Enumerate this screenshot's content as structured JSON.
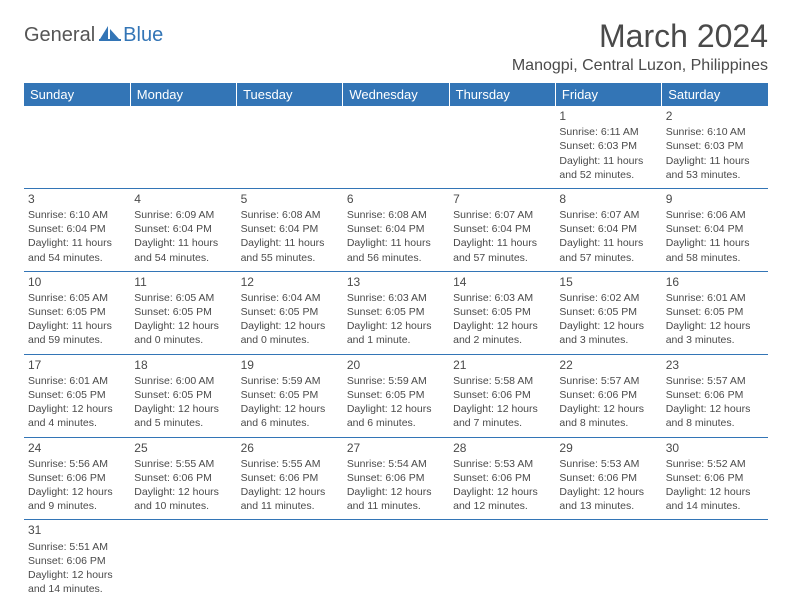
{
  "logo": {
    "part1": "General",
    "part2": "Blue"
  },
  "title": "March 2024",
  "location": "Manogpi, Central Luzon, Philippines",
  "colors": {
    "header_bg": "#3375b6",
    "header_fg": "#ffffff",
    "text": "#4a4a4a",
    "row_divider": "#3375b6",
    "page_bg": "#ffffff"
  },
  "day_headers": [
    "Sunday",
    "Monday",
    "Tuesday",
    "Wednesday",
    "Thursday",
    "Friday",
    "Saturday"
  ],
  "weeks": [
    [
      null,
      null,
      null,
      null,
      null,
      {
        "n": "1",
        "sr": "Sunrise: 6:11 AM",
        "ss": "Sunset: 6:03 PM",
        "d1": "Daylight: 11 hours",
        "d2": "and 52 minutes."
      },
      {
        "n": "2",
        "sr": "Sunrise: 6:10 AM",
        "ss": "Sunset: 6:03 PM",
        "d1": "Daylight: 11 hours",
        "d2": "and 53 minutes."
      }
    ],
    [
      {
        "n": "3",
        "sr": "Sunrise: 6:10 AM",
        "ss": "Sunset: 6:04 PM",
        "d1": "Daylight: 11 hours",
        "d2": "and 54 minutes."
      },
      {
        "n": "4",
        "sr": "Sunrise: 6:09 AM",
        "ss": "Sunset: 6:04 PM",
        "d1": "Daylight: 11 hours",
        "d2": "and 54 minutes."
      },
      {
        "n": "5",
        "sr": "Sunrise: 6:08 AM",
        "ss": "Sunset: 6:04 PM",
        "d1": "Daylight: 11 hours",
        "d2": "and 55 minutes."
      },
      {
        "n": "6",
        "sr": "Sunrise: 6:08 AM",
        "ss": "Sunset: 6:04 PM",
        "d1": "Daylight: 11 hours",
        "d2": "and 56 minutes."
      },
      {
        "n": "7",
        "sr": "Sunrise: 6:07 AM",
        "ss": "Sunset: 6:04 PM",
        "d1": "Daylight: 11 hours",
        "d2": "and 57 minutes."
      },
      {
        "n": "8",
        "sr": "Sunrise: 6:07 AM",
        "ss": "Sunset: 6:04 PM",
        "d1": "Daylight: 11 hours",
        "d2": "and 57 minutes."
      },
      {
        "n": "9",
        "sr": "Sunrise: 6:06 AM",
        "ss": "Sunset: 6:04 PM",
        "d1": "Daylight: 11 hours",
        "d2": "and 58 minutes."
      }
    ],
    [
      {
        "n": "10",
        "sr": "Sunrise: 6:05 AM",
        "ss": "Sunset: 6:05 PM",
        "d1": "Daylight: 11 hours",
        "d2": "and 59 minutes."
      },
      {
        "n": "11",
        "sr": "Sunrise: 6:05 AM",
        "ss": "Sunset: 6:05 PM",
        "d1": "Daylight: 12 hours",
        "d2": "and 0 minutes."
      },
      {
        "n": "12",
        "sr": "Sunrise: 6:04 AM",
        "ss": "Sunset: 6:05 PM",
        "d1": "Daylight: 12 hours",
        "d2": "and 0 minutes."
      },
      {
        "n": "13",
        "sr": "Sunrise: 6:03 AM",
        "ss": "Sunset: 6:05 PM",
        "d1": "Daylight: 12 hours",
        "d2": "and 1 minute."
      },
      {
        "n": "14",
        "sr": "Sunrise: 6:03 AM",
        "ss": "Sunset: 6:05 PM",
        "d1": "Daylight: 12 hours",
        "d2": "and 2 minutes."
      },
      {
        "n": "15",
        "sr": "Sunrise: 6:02 AM",
        "ss": "Sunset: 6:05 PM",
        "d1": "Daylight: 12 hours",
        "d2": "and 3 minutes."
      },
      {
        "n": "16",
        "sr": "Sunrise: 6:01 AM",
        "ss": "Sunset: 6:05 PM",
        "d1": "Daylight: 12 hours",
        "d2": "and 3 minutes."
      }
    ],
    [
      {
        "n": "17",
        "sr": "Sunrise: 6:01 AM",
        "ss": "Sunset: 6:05 PM",
        "d1": "Daylight: 12 hours",
        "d2": "and 4 minutes."
      },
      {
        "n": "18",
        "sr": "Sunrise: 6:00 AM",
        "ss": "Sunset: 6:05 PM",
        "d1": "Daylight: 12 hours",
        "d2": "and 5 minutes."
      },
      {
        "n": "19",
        "sr": "Sunrise: 5:59 AM",
        "ss": "Sunset: 6:05 PM",
        "d1": "Daylight: 12 hours",
        "d2": "and 6 minutes."
      },
      {
        "n": "20",
        "sr": "Sunrise: 5:59 AM",
        "ss": "Sunset: 6:05 PM",
        "d1": "Daylight: 12 hours",
        "d2": "and 6 minutes."
      },
      {
        "n": "21",
        "sr": "Sunrise: 5:58 AM",
        "ss": "Sunset: 6:06 PM",
        "d1": "Daylight: 12 hours",
        "d2": "and 7 minutes."
      },
      {
        "n": "22",
        "sr": "Sunrise: 5:57 AM",
        "ss": "Sunset: 6:06 PM",
        "d1": "Daylight: 12 hours",
        "d2": "and 8 minutes."
      },
      {
        "n": "23",
        "sr": "Sunrise: 5:57 AM",
        "ss": "Sunset: 6:06 PM",
        "d1": "Daylight: 12 hours",
        "d2": "and 8 minutes."
      }
    ],
    [
      {
        "n": "24",
        "sr": "Sunrise: 5:56 AM",
        "ss": "Sunset: 6:06 PM",
        "d1": "Daylight: 12 hours",
        "d2": "and 9 minutes."
      },
      {
        "n": "25",
        "sr": "Sunrise: 5:55 AM",
        "ss": "Sunset: 6:06 PM",
        "d1": "Daylight: 12 hours",
        "d2": "and 10 minutes."
      },
      {
        "n": "26",
        "sr": "Sunrise: 5:55 AM",
        "ss": "Sunset: 6:06 PM",
        "d1": "Daylight: 12 hours",
        "d2": "and 11 minutes."
      },
      {
        "n": "27",
        "sr": "Sunrise: 5:54 AM",
        "ss": "Sunset: 6:06 PM",
        "d1": "Daylight: 12 hours",
        "d2": "and 11 minutes."
      },
      {
        "n": "28",
        "sr": "Sunrise: 5:53 AM",
        "ss": "Sunset: 6:06 PM",
        "d1": "Daylight: 12 hours",
        "d2": "and 12 minutes."
      },
      {
        "n": "29",
        "sr": "Sunrise: 5:53 AM",
        "ss": "Sunset: 6:06 PM",
        "d1": "Daylight: 12 hours",
        "d2": "and 13 minutes."
      },
      {
        "n": "30",
        "sr": "Sunrise: 5:52 AM",
        "ss": "Sunset: 6:06 PM",
        "d1": "Daylight: 12 hours",
        "d2": "and 14 minutes."
      }
    ],
    [
      {
        "n": "31",
        "sr": "Sunrise: 5:51 AM",
        "ss": "Sunset: 6:06 PM",
        "d1": "Daylight: 12 hours",
        "d2": "and 14 minutes."
      },
      null,
      null,
      null,
      null,
      null,
      null
    ]
  ]
}
